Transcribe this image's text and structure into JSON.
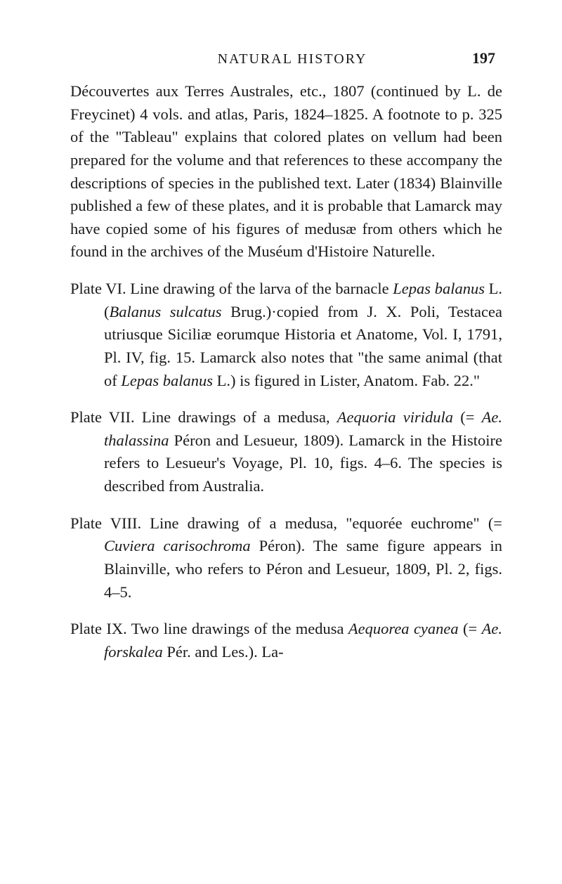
{
  "header": {
    "running_title": "NATURAL HISTORY",
    "page_number": "197"
  },
  "paragraphs": {
    "intro": {
      "text_1": "Découvertes aux Terres Australes, etc., 1807 (conti­nued by L. de Freycinet) 4 vols. and atlas, Paris, 1824–1825. A footnote to p. 325 of the \"Tableau\" explains that colored plates on vellum had been prepared for the volume and that references to these accompany the descriptions of species in the pub­lished text. Later (1834) Blainville published a few of these plates, and it is probable that Lamarck may have copied some of his figures of medusæ from others which he found in the archives of the Muséum d'Histoire Naturelle."
    },
    "plate6": {
      "prefix": "Plate VI. Line drawing of the larva of the barnacle ",
      "italic1": "Lepas balanus",
      "mid1": " L. (",
      "italic2": "Balanus sulcatus",
      "mid2": " Brug.)·copied from J. X. Poli, Testacea utriusque Siciliæ eorumque Historia et Anatome, Vol. I, 1791, Pl. IV, fig. 15. Lamarck also notes that \"the same animal (that of ",
      "italic3": "Lepas balanus",
      "suffix": " L.) is figured in Lister, Anatom. Fab. 22.\""
    },
    "plate7": {
      "prefix": "Plate VII. Line drawings of a medusa, ",
      "italic1": "Aequoria viridula",
      "mid1": " (= ",
      "italic2": "Ae. thalassina",
      "suffix": " Péron and Lesueur, 1809). Lamarck in the Histoire refers to Le­sueur's Voyage, Pl. 10, figs. 4–6. The species is described from Australia."
    },
    "plate8": {
      "prefix": "Plate VIII. Line drawing of a medusa, \"equorée euchrome\" (= ",
      "italic1": "Cuviera carisochroma",
      "suffix": " Péron). The same figure appears in Blainville, who refers to Péron and Lesueur, 1809, Pl. 2, figs. 4–5."
    },
    "plate9": {
      "prefix": "Plate IX. Two line drawings of the medusa ",
      "italic1": "Aequo­rea cyanea",
      "mid1": " (= ",
      "italic2": "Ae. forskalea",
      "suffix": " Pér. and Les.). La-"
    }
  }
}
